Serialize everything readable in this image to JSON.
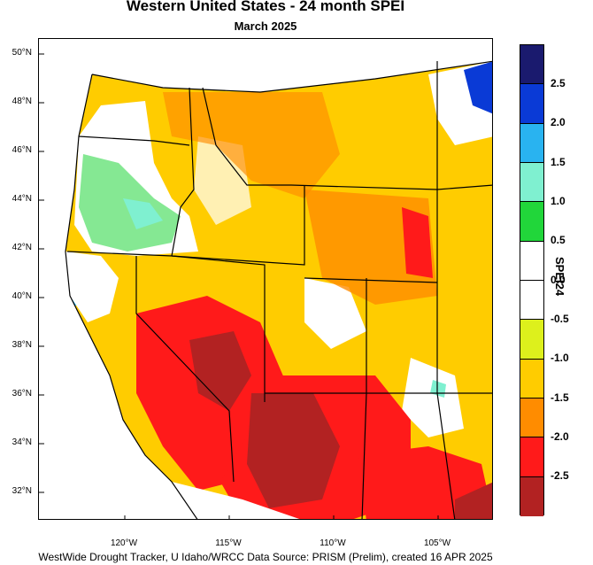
{
  "title": "Western United States - 24 month SPEI",
  "subtitle": "March 2025",
  "footer": "WestWide Drought Tracker, U Idaho/WRCC Data Source: PRISM (Prelim), created 16 APR 2025",
  "latitudes": [
    "50°N",
    "48°N",
    "46°N",
    "44°N",
    "42°N",
    "40°N",
    "38°N",
    "36°N",
    "34°N",
    "32°N"
  ],
  "longitudes": [
    "120°W",
    "115°W",
    "110°W",
    "105°W"
  ],
  "legend": {
    "title": "SPEI24",
    "labels": [
      "2.5",
      "2.0",
      "1.5",
      "1.0",
      "0.5",
      "0.0",
      "-0.5",
      "-1.0",
      "-1.5",
      "-2.0",
      "-2.5"
    ],
    "colors": [
      "#1a1a6e",
      "#0a3ad6",
      "#29b3f0",
      "#7ff0d0",
      "#21d63a",
      "#ffffff",
      "#ffffff",
      "#ddf01c",
      "#ffcc00",
      "#ff8c00",
      "#ff1a1a",
      "#b22222"
    ]
  },
  "map_colors": {
    "extreme": "#b22222",
    "severe": "#ff1a1a",
    "moderate": "#ff8c00",
    "mild": "#ffcc00",
    "slight": "#ddf01c",
    "wet_mild": "#21d63a",
    "wet_mod": "#7ff0d0",
    "wet_strong": "#29b3f0",
    "wet_extreme": "#0a3ad6",
    "ocean": "#ffffff",
    "border": "#000000"
  }
}
